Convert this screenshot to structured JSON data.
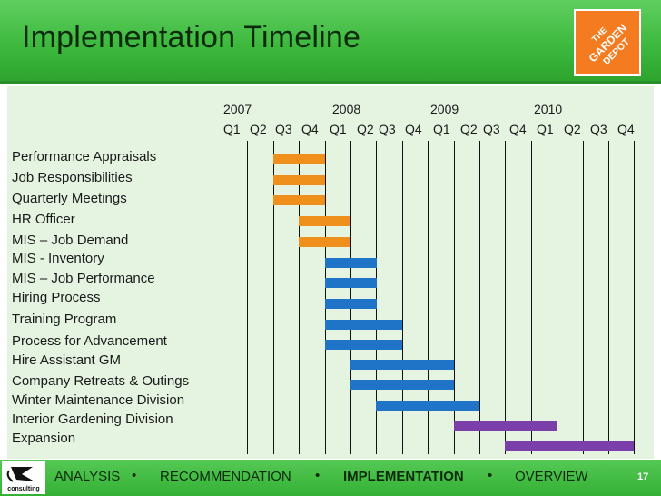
{
  "header": {
    "title": "Implementation Timeline",
    "logo_text": [
      "THE",
      "GARDEN",
      "DEPOT"
    ]
  },
  "timeline": {
    "years": [
      "2007",
      "2008",
      "2009",
      "2010"
    ],
    "quarters": [
      "Q1",
      "Q2",
      "Q3",
      "Q4",
      "Q1",
      "Q2",
      "Q3",
      "Q4",
      "Q1",
      "Q2",
      "Q3",
      "Q4",
      "Q1",
      "Q2",
      "Q3",
      "Q4"
    ],
    "tasks": [
      {
        "label": "Performance Appraisals",
        "start": "2007 Q3",
        "end": "2007 Q4",
        "color": "#f0901c"
      },
      {
        "label": "Job Responsibilities",
        "start": "2007 Q3",
        "end": "2007 Q4",
        "color": "#f0901c"
      },
      {
        "label": "Quarterly Meetings",
        "start": "2007 Q3",
        "end": "2007 Q4",
        "color": "#f0901c"
      },
      {
        "label": "HR Officer",
        "start": "2007 Q4",
        "end": "2008 Q1",
        "color": "#f0901c"
      },
      {
        "label": "MIS – Job Demand",
        "start": "2007 Q4",
        "end": "2008 Q1",
        "color": "#f0901c"
      },
      {
        "label": "MIS - Inventory",
        "start": "2008 Q1",
        "end": "2008 Q2",
        "color": "#1f74c8"
      },
      {
        "label": "MIS – Job Performance",
        "start": "2008 Q1",
        "end": "2008 Q2",
        "color": "#1f74c8"
      },
      {
        "label": "Hiring Process",
        "start": "2008 Q1",
        "end": "2008 Q2",
        "color": "#1f74c8"
      },
      {
        "label": "Training Program",
        "start": "2008 Q1",
        "end": "2008 Q3",
        "color": "#1f74c8"
      },
      {
        "label": "Process for Advancement",
        "start": "2008 Q1",
        "end": "2008 Q3",
        "color": "#1f74c8"
      },
      {
        "label": "Hire Assistant GM",
        "start": "2008 Q2",
        "end": "2009 Q1",
        "color": "#1f74c8"
      },
      {
        "label": "Company Retreats & Outings",
        "start": "2008 Q2",
        "end": "2009 Q1",
        "color": "#1f74c8"
      },
      {
        "label": "Winter Maintenance Division",
        "start": "2008 Q3",
        "end": "2009 Q2",
        "color": "#1f74c8"
      },
      {
        "label": "Interior Gardening Division",
        "start": "2009 Q2",
        "end": "2010 Q1",
        "color": "#7a3fa8"
      },
      {
        "label": "Expansion",
        "start": "2009 Q4",
        "end": "2010 Q4",
        "color": "#7a3fa8"
      }
    ]
  },
  "footer": {
    "logo_text": "consulting",
    "nav": [
      "ANALYSIS",
      "RECOMMENDATION",
      "IMPLEMENTATION",
      "OVERVIEW"
    ],
    "separator": "•",
    "active": "IMPLEMENTATION",
    "page_number": "17"
  }
}
